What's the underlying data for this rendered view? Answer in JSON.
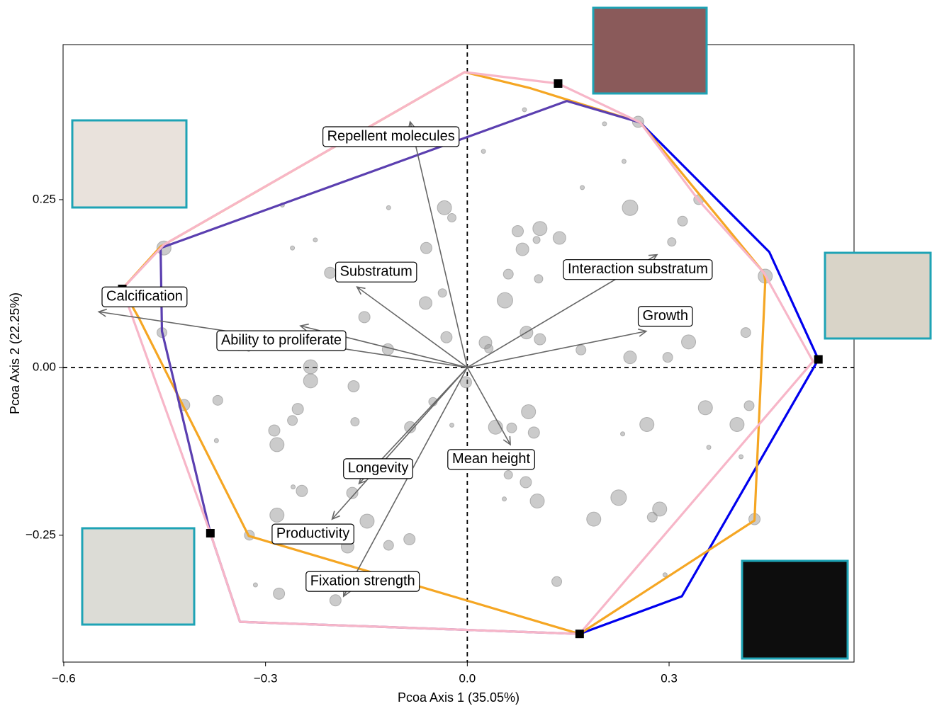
{
  "chart_data": {
    "type": "scatter",
    "x_label": "Pcoa Axis 1 (35.05%)",
    "y_label": "Pcoa Axis 2 (22.25%)",
    "xlim": [
      -0.601,
      0.575
    ],
    "ylim": [
      -0.439,
      0.481
    ],
    "xticks": [
      {
        "value": -0.6,
        "label": "−0.6"
      },
      {
        "value": -0.3,
        "label": "−0.3"
      },
      {
        "value": 0,
        "label": "0.0"
      },
      {
        "value": 0.3,
        "label": "0.3"
      }
    ],
    "yticks": [
      {
        "value": -0.25,
        "label": "−0.25"
      },
      {
        "value": 0,
        "label": "0.00"
      },
      {
        "value": 0.25,
        "label": "0.25"
      }
    ],
    "points": {
      "color": "#8c8c8c",
      "x": [
        -0.034,
        -0.023,
        -0.061,
        0.075,
        0.108,
        0.137,
        0.082,
        0.103,
        0.242,
        0.32,
        0.344,
        0.304,
        0.443,
        0.414,
        0.275,
        0.329,
        0.298,
        0.242,
        0.169,
        0.108,
        0.088,
        0.056,
        0.061,
        0.106,
        0.027,
        0.032,
        -0.031,
        -0.062,
        -0.037,
        -0.153,
        -0.118,
        -0.169,
        -0.233,
        -0.233,
        -0.26,
        -0.252,
        -0.287,
        -0.283,
        -0.167,
        -0.085,
        -0.002,
        -0.051,
        0.091,
        0.066,
        0.099,
        0.042,
        0.061,
        0.087,
        0.104,
        -0.171,
        -0.246,
        -0.149,
        -0.178,
        -0.117,
        -0.086,
        -0.283,
        -0.324,
        -0.28,
        -0.196,
        0.133,
        0.225,
        0.286,
        0.275,
        0.188,
        0.427,
        0.401,
        0.419,
        0.354,
        0.267,
        0.254,
        -0.421,
        -0.371,
        -0.451,
        -0.454,
        -0.204,
        0.024,
        0.085,
        0.204,
        0.233,
        0.171,
        -0.117,
        -0.26,
        -0.226,
        -0.34,
        -0.325,
        -0.373,
        -0.259,
        -0.023,
        0.056,
        0.231,
        -0.315,
        0.294,
        0.407,
        -0.275,
        0.359,
        0.055
      ],
      "y": [
        0.238,
        0.223,
        0.178,
        0.203,
        0.207,
        0.193,
        0.176,
        0.19,
        0.238,
        0.218,
        0.25,
        0.187,
        0.136,
        0.052,
        0.075,
        0.038,
        0.015,
        0.015,
        0.026,
        0.042,
        0.052,
        0.1,
        0.139,
        0.132,
        0.037,
        0.028,
        0.045,
        0.096,
        0.111,
        0.075,
        0.027,
        -0.028,
        0.001,
        -0.02,
        -0.079,
        -0.062,
        -0.094,
        -0.115,
        -0.081,
        -0.089,
        -0.022,
        -0.051,
        -0.066,
        -0.09,
        -0.097,
        -0.089,
        -0.16,
        -0.171,
        -0.199,
        -0.187,
        -0.184,
        -0.229,
        -0.267,
        -0.265,
        -0.256,
        -0.22,
        -0.25,
        -0.337,
        -0.347,
        -0.319,
        -0.194,
        -0.211,
        -0.223,
        -0.226,
        -0.226,
        -0.085,
        -0.057,
        -0.06,
        -0.085,
        0.366,
        -0.056,
        -0.049,
        0.178,
        0.052,
        0.141,
        0.322,
        0.384,
        0.363,
        0.307,
        0.268,
        0.238,
        0.178,
        0.19,
        0.028,
        0.027,
        -0.109,
        -0.178,
        -0.086,
        -0.128,
        -0.099,
        -0.324,
        -0.309,
        -0.133,
        0.242,
        -0.119,
        -0.196
      ],
      "size": [
        10,
        6,
        8,
        8,
        10,
        9,
        9,
        5,
        11,
        7,
        7,
        6,
        10,
        7,
        8,
        10,
        7,
        9,
        7,
        8,
        9,
        11,
        7,
        6,
        9,
        6,
        8,
        9,
        6,
        8,
        8,
        8,
        10,
        10,
        7,
        8,
        8,
        10,
        6,
        8,
        8,
        6,
        10,
        7,
        8,
        10,
        6,
        8,
        10,
        8,
        8,
        10,
        9,
        7,
        8,
        10,
        7,
        8,
        8,
        7,
        11,
        10,
        7,
        10,
        8,
        10,
        7,
        10,
        10,
        8,
        8,
        7,
        10,
        7,
        8,
        3,
        3,
        3,
        3,
        3,
        3,
        3,
        3,
        3,
        3,
        3,
        3,
        3,
        3,
        3,
        3,
        3,
        3,
        3,
        3,
        3
      ]
    },
    "hulls": [
      {
        "color": "#0000ee",
        "closed": false,
        "x": [
          0.257,
          0.449,
          0.522,
          0.319,
          0.167
        ],
        "y": [
          0.365,
          0.172,
          0.012,
          -0.341,
          -0.397
        ]
      },
      {
        "color": "#f5a623",
        "closed": true,
        "x": [
          -0.004,
          0.094,
          0.257,
          0.441,
          0.443,
          0.427,
          0.167,
          -0.325,
          -0.489,
          -0.513,
          -0.456
        ],
        "y": [
          0.44,
          0.416,
          0.365,
          0.141,
          0.129,
          -0.228,
          -0.397,
          -0.251,
          0.075,
          0.117,
          0.18
        ]
      },
      {
        "color": "#5b3fb0",
        "closed": false,
        "x": [
          0.257,
          0.148,
          -0.456,
          -0.454,
          -0.382,
          -0.338,
          0.167
        ],
        "y": [
          0.365,
          0.397,
          0.178,
          0.054,
          -0.247,
          -0.379,
          -0.397
        ]
      },
      {
        "color": "#f7b6c8",
        "closed": true,
        "x": [
          -0.004,
          0.135,
          0.257,
          0.344,
          0.441,
          0.514,
          0.167,
          -0.338,
          -0.382,
          -0.513,
          -0.451
        ],
        "y": [
          0.44,
          0.423,
          0.365,
          0.249,
          0.141,
          0.009,
          -0.397,
          -0.379,
          -0.247,
          0.117,
          0.183
        ]
      }
    ],
    "extremes": {
      "color": "#000000",
      "x": [
        -0.513,
        0.135,
        0.522,
        -0.382,
        0.167
      ],
      "y": [
        0.117,
        0.423,
        0.012,
        -0.247,
        -0.397
      ]
    },
    "vector_color": "#666666",
    "vectors": [
      {
        "label": "Repellent molecules",
        "x": -0.085,
        "y": 0.366
      },
      {
        "label": "Substratum",
        "x": -0.164,
        "y": 0.12
      },
      {
        "label": "Ability to proliferate",
        "x": -0.248,
        "y": 0.062
      },
      {
        "label": "Calcification",
        "x": -0.548,
        "y": 0.083
      },
      {
        "label": "Interaction substratum",
        "x": 0.282,
        "y": 0.168
      },
      {
        "label": "Growth",
        "x": 0.266,
        "y": 0.054
      },
      {
        "label": "Mean height",
        "x": 0.064,
        "y": -0.115
      },
      {
        "label": "Longevity",
        "x": -0.161,
        "y": -0.173
      },
      {
        "label": "Productivity",
        "x": -0.201,
        "y": -0.226
      },
      {
        "label": "Fixation strength",
        "x": -0.184,
        "y": -0.341
      }
    ]
  }
}
